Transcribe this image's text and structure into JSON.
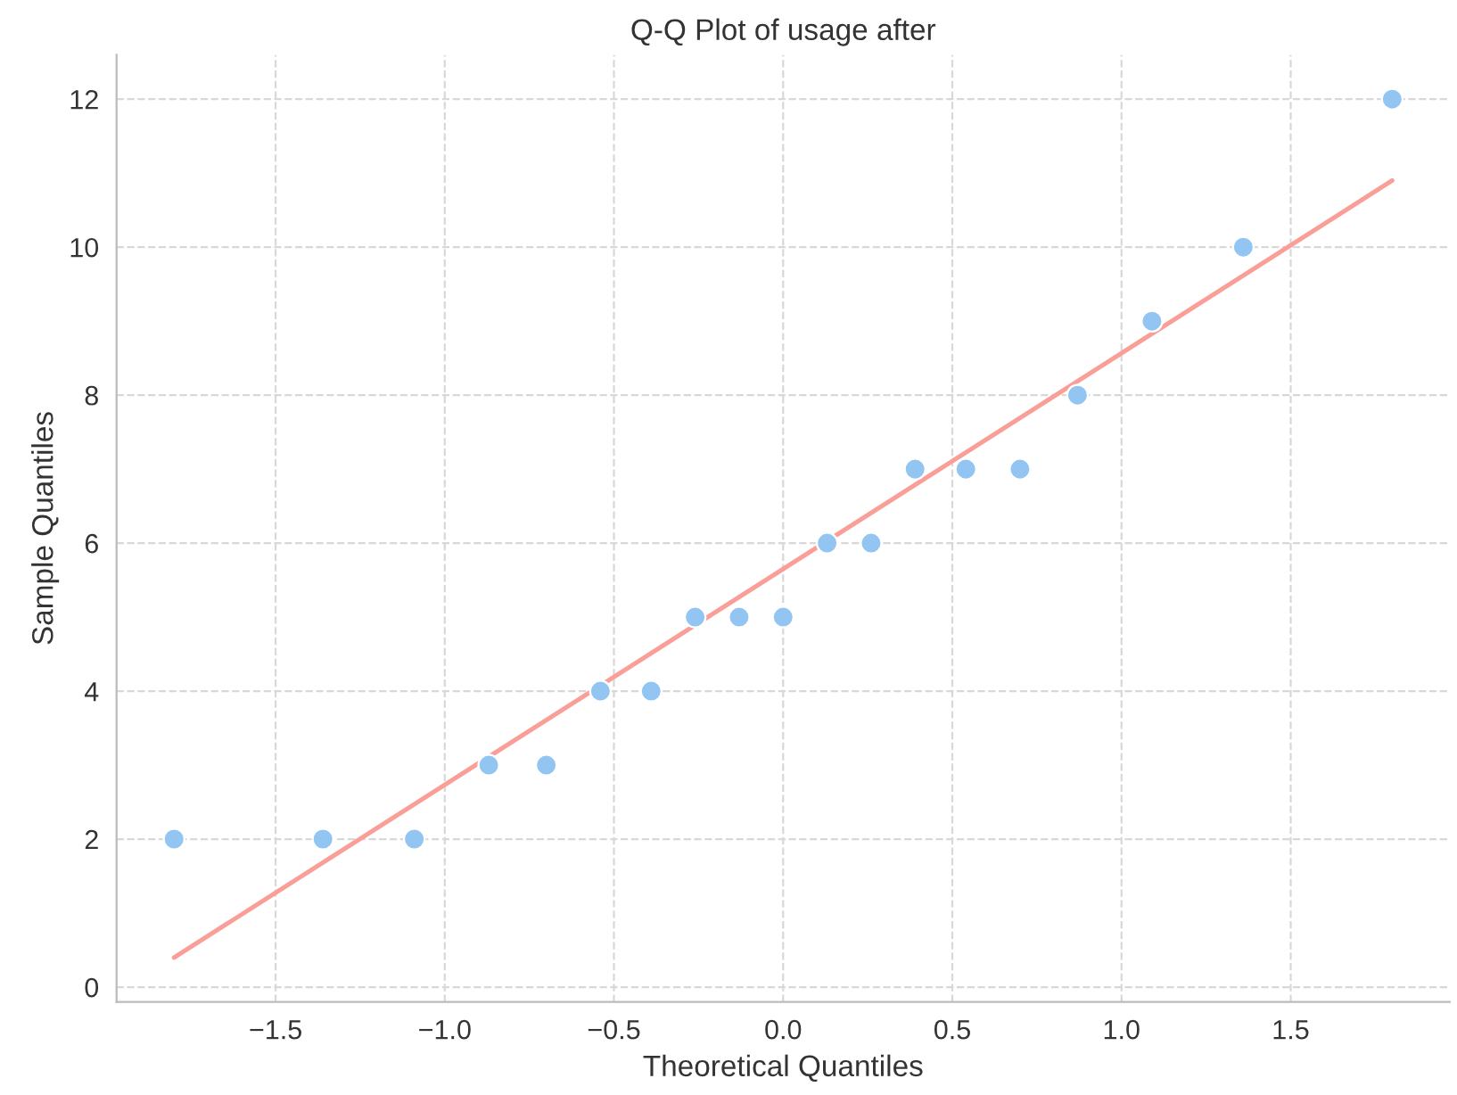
{
  "chart_data": {
    "type": "scatter",
    "title": "Q-Q Plot of usage after",
    "xlabel": "Theoretical Quantiles",
    "ylabel": "Sample Quantiles",
    "series": [
      {
        "marker": "circle",
        "color": "#92c5f2",
        "x": [
          -1.8,
          -1.36,
          -1.09,
          -0.87,
          -0.7,
          -0.54,
          -0.39,
          -0.26,
          -0.13,
          0.0,
          0.13,
          0.26,
          0.39,
          0.54,
          0.7,
          0.87,
          1.09,
          1.36,
          1.8
        ],
        "values": [
          2,
          2,
          2,
          3,
          3,
          4,
          4,
          5,
          5,
          5,
          6,
          6,
          7,
          7,
          7,
          8,
          9,
          10,
          12
        ]
      },
      {
        "type": "line",
        "color": "#fa9e98",
        "x": [
          -1.8,
          1.8
        ],
        "values": [
          0.4,
          10.9
        ]
      }
    ],
    "xlim": [
      -1.97,
      1.97
    ],
    "ylim": [
      -0.2,
      12.6
    ],
    "xticks": [
      {
        "value": -1.5,
        "label": "−1.5"
      },
      {
        "value": -1.0,
        "label": "−1.0"
      },
      {
        "value": -0.5,
        "label": "−0.5"
      },
      {
        "value": 0.0,
        "label": "0.0"
      },
      {
        "value": 0.5,
        "label": "0.5"
      },
      {
        "value": 1.0,
        "label": "1.0"
      },
      {
        "value": 1.5,
        "label": "1.5"
      }
    ],
    "yticks": [
      0,
      2,
      4,
      6,
      8,
      10,
      12
    ],
    "grid": true
  }
}
